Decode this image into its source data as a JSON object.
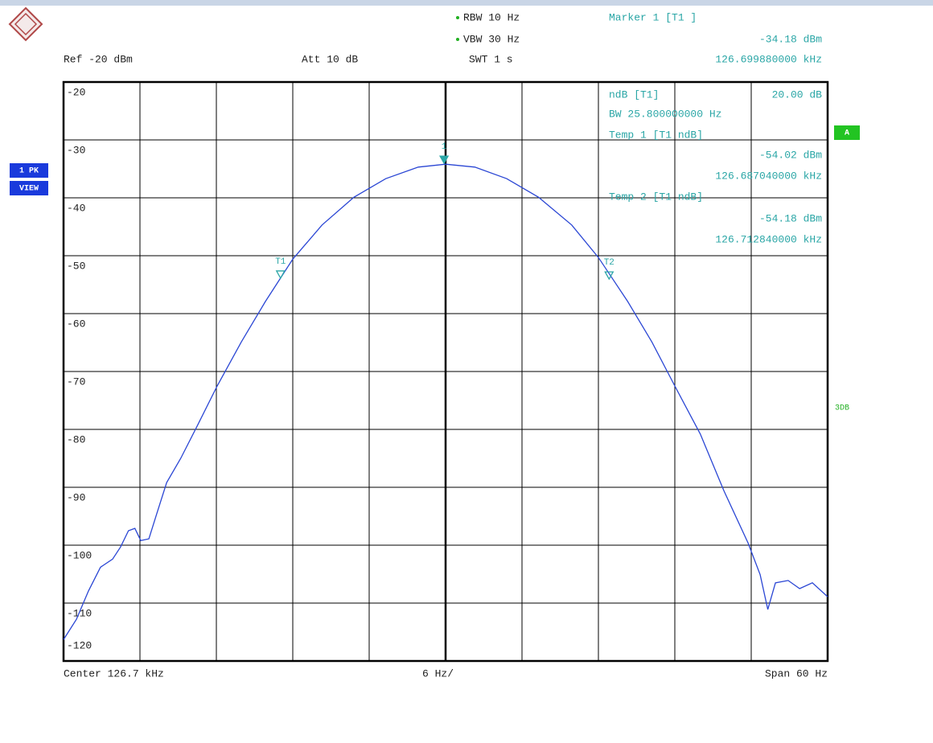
{
  "chart_data": {
    "type": "line",
    "annotations": {
      "rbw": "RBW 10 Hz",
      "vbw": "VBW 30 Hz",
      "swt": "SWT 1 s",
      "ref": "Ref -20 dBm",
      "att": "Att 10 dB",
      "marker_title": "Marker 1 [T1 ]",
      "marker_level": "-34.18 dBm",
      "marker_freq": "126.699880000 kHz",
      "ndb_label": "ndB [T1]",
      "ndb_value": "20.00 dB",
      "bw": "BW 25.800000000 Hz",
      "temp1_title": "Temp 1 [T1 ndB]",
      "temp1_level": "-54.02 dBm",
      "temp1_freq": "126.687040000 kHz",
      "temp2_title": "Temp 2 [T1 ndB]",
      "temp2_level": "-54.18 dBm",
      "temp2_freq": "126.712840000 kHz",
      "trace_mode": "1 PK",
      "trace_view": "VIEW",
      "screen": "A",
      "limit": "3DB",
      "center": "Center 126.7 kHz",
      "per_div": "6 Hz/",
      "span": "Span 60 Hz"
    },
    "x": [
      126.67,
      126.67101,
      126.67196,
      126.6729,
      126.67385,
      126.67448,
      126.6751,
      126.6756,
      126.67606,
      126.6767,
      126.6773,
      126.6781,
      126.6792,
      126.6805,
      126.68206,
      126.68396,
      126.68585,
      126.688,
      126.6903,
      126.6928,
      126.6953,
      126.69785,
      126.7,
      126.7023,
      126.7048,
      126.7073,
      126.7099,
      126.712,
      126.7143,
      126.7162,
      126.718,
      126.72,
      126.72185,
      126.72375,
      126.7247,
      126.7253,
      126.7259,
      126.7269,
      126.7278,
      126.7288,
      126.73
    ],
    "series": [
      {
        "color": "#2a46d4",
        "values": [
          -116.3,
          -112.8,
          -107.9,
          -103.8,
          -102.4,
          -100.3,
          -97.5,
          -97.1,
          -99.2,
          -98.9,
          -94.7,
          -89.2,
          -85.0,
          -79.4,
          -72.5,
          -64.9,
          -57.9,
          -50.6,
          -44.7,
          -39.9,
          -36.7,
          -34.7,
          -34.2,
          -34.7,
          -36.7,
          -39.9,
          -44.7,
          -50.3,
          -57.9,
          -64.9,
          -72.5,
          -80.8,
          -90.6,
          -99.6,
          -105.1,
          -111.1,
          -106.5,
          -106.1,
          -107.5,
          -106.5,
          -108.9
        ]
      }
    ],
    "markers": [
      {
        "label": "1",
        "x": 126.69988,
        "y": -34.18
      },
      {
        "label": "T1",
        "x": 126.68704,
        "y": -54.02
      },
      {
        "label": "T2",
        "x": 126.71284,
        "y": -54.18
      }
    ],
    "marker_color": "#2aa6a6",
    "xlim": [
      126.67,
      126.73
    ],
    "xticks": [
      126.67,
      126.676,
      126.682,
      126.688,
      126.694,
      126.7,
      126.706,
      126.712,
      126.718,
      126.724,
      126.73
    ],
    "ylim": [
      -120,
      -20
    ],
    "yticks": [
      -20,
      -30,
      -40,
      -50,
      -60,
      -70,
      -80,
      -90,
      -100,
      -110,
      -120
    ],
    "grid": true
  }
}
